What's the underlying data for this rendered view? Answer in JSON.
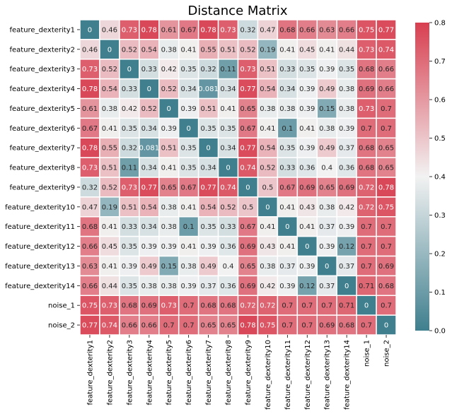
{
  "chart_data": {
    "type": "heatmap",
    "title": "Distance Matrix",
    "xlabel": "",
    "ylabel": "",
    "labels": [
      "feature_dexterity1",
      "feature_dexterity2",
      "feature_dexterity3",
      "feature_dexterity4",
      "feature_dexterity5",
      "feature_dexterity6",
      "feature_dexterity7",
      "feature_dexterity8",
      "feature_dexterity9",
      "feature_dexterity10",
      "feature_dexterity11",
      "feature_dexterity12",
      "feature_dexterity13",
      "feature_dexterity14",
      "noise_1",
      "noise_2"
    ],
    "cell_labels": [
      [
        "0",
        "0.46",
        "0.73",
        "0.78",
        "0.61",
        "0.67",
        "0.78",
        "0.73",
        "0.32",
        "0.47",
        "0.68",
        "0.66",
        "0.63",
        "0.66",
        "0.75",
        "0.77"
      ],
      [
        "0.46",
        "0",
        "0.52",
        "0.54",
        "0.38",
        "0.41",
        "0.55",
        "0.51",
        "0.52",
        "0.19",
        "0.41",
        "0.45",
        "0.41",
        "0.44",
        "0.73",
        "0.74"
      ],
      [
        "0.73",
        "0.52",
        "0",
        "0.33",
        "0.42",
        "0.35",
        "0.32",
        "0.11",
        "0.73",
        "0.51",
        "0.33",
        "0.35",
        "0.39",
        "0.35",
        "0.68",
        "0.66"
      ],
      [
        "0.78",
        "0.54",
        "0.33",
        "0",
        "0.52",
        "0.34",
        "0.081",
        "0.34",
        "0.77",
        "0.54",
        "0.34",
        "0.39",
        "0.49",
        "0.38",
        "0.69",
        "0.66"
      ],
      [
        "0.61",
        "0.38",
        "0.42",
        "0.52",
        "0",
        "0.39",
        "0.51",
        "0.41",
        "0.65",
        "0.38",
        "0.38",
        "0.39",
        "0.15",
        "0.38",
        "0.73",
        "0.7"
      ],
      [
        "0.67",
        "0.41",
        "0.35",
        "0.34",
        "0.39",
        "0",
        "0.35",
        "0.35",
        "0.67",
        "0.41",
        "0.1",
        "0.41",
        "0.38",
        "0.39",
        "0.7",
        "0.7"
      ],
      [
        "0.78",
        "0.55",
        "0.32",
        "0.081",
        "0.51",
        "0.35",
        "0",
        "0.34",
        "0.77",
        "0.54",
        "0.35",
        "0.39",
        "0.49",
        "0.37",
        "0.68",
        "0.65"
      ],
      [
        "0.73",
        "0.51",
        "0.11",
        "0.34",
        "0.41",
        "0.35",
        "0.34",
        "0",
        "0.74",
        "0.52",
        "0.33",
        "0.36",
        "0.4",
        "0.36",
        "0.68",
        "0.65"
      ],
      [
        "0.32",
        "0.52",
        "0.73",
        "0.77",
        "0.65",
        "0.67",
        "0.77",
        "0.74",
        "0",
        "0.5",
        "0.67",
        "0.69",
        "0.65",
        "0.69",
        "0.72",
        "0.78"
      ],
      [
        "0.47",
        "0.19",
        "0.51",
        "0.54",
        "0.38",
        "0.41",
        "0.54",
        "0.52",
        "0.5",
        "0",
        "0.41",
        "0.43",
        "0.38",
        "0.42",
        "0.72",
        "0.75"
      ],
      [
        "0.68",
        "0.41",
        "0.33",
        "0.34",
        "0.38",
        "0.1",
        "0.35",
        "0.33",
        "0.67",
        "0.41",
        "0",
        "0.41",
        "0.37",
        "0.39",
        "0.7",
        "0.7"
      ],
      [
        "0.66",
        "0.45",
        "0.35",
        "0.39",
        "0.39",
        "0.41",
        "0.39",
        "0.36",
        "0.69",
        "0.43",
        "0.41",
        "0",
        "0.39",
        "0.12",
        "0.7",
        "0.7"
      ],
      [
        "0.63",
        "0.41",
        "0.39",
        "0.49",
        "0.15",
        "0.38",
        "0.49",
        "0.4",
        "0.65",
        "0.38",
        "0.37",
        "0.39",
        "0",
        "0.37",
        "0.7",
        "0.69"
      ],
      [
        "0.66",
        "0.44",
        "0.35",
        "0.38",
        "0.38",
        "0.39",
        "0.37",
        "0.36",
        "0.69",
        "0.42",
        "0.39",
        "0.12",
        "0.37",
        "0",
        "0.71",
        "0.68"
      ],
      [
        "0.75",
        "0.73",
        "0.68",
        "0.69",
        "0.73",
        "0.7",
        "0.68",
        "0.68",
        "0.72",
        "0.72",
        "0.7",
        "0.7",
        "0.7",
        "0.71",
        "0",
        "0.7"
      ],
      [
        "0.77",
        "0.74",
        "0.66",
        "0.66",
        "0.7",
        "0.7",
        "0.65",
        "0.65",
        "0.78",
        "0.75",
        "0.7",
        "0.7",
        "0.69",
        "0.68",
        "0.7",
        "0"
      ]
    ],
    "colorbar": {
      "range": [
        0,
        0.8
      ],
      "ticks": [
        "0.0",
        "0.1",
        "0.2",
        "0.3",
        "0.4",
        "0.5",
        "0.6",
        "0.7",
        "0.8"
      ],
      "low_color": "#3f7f8e",
      "mid_color": "#f2f2f2",
      "high_color": "#d83f50"
    },
    "grid": true,
    "legend": "right"
  }
}
